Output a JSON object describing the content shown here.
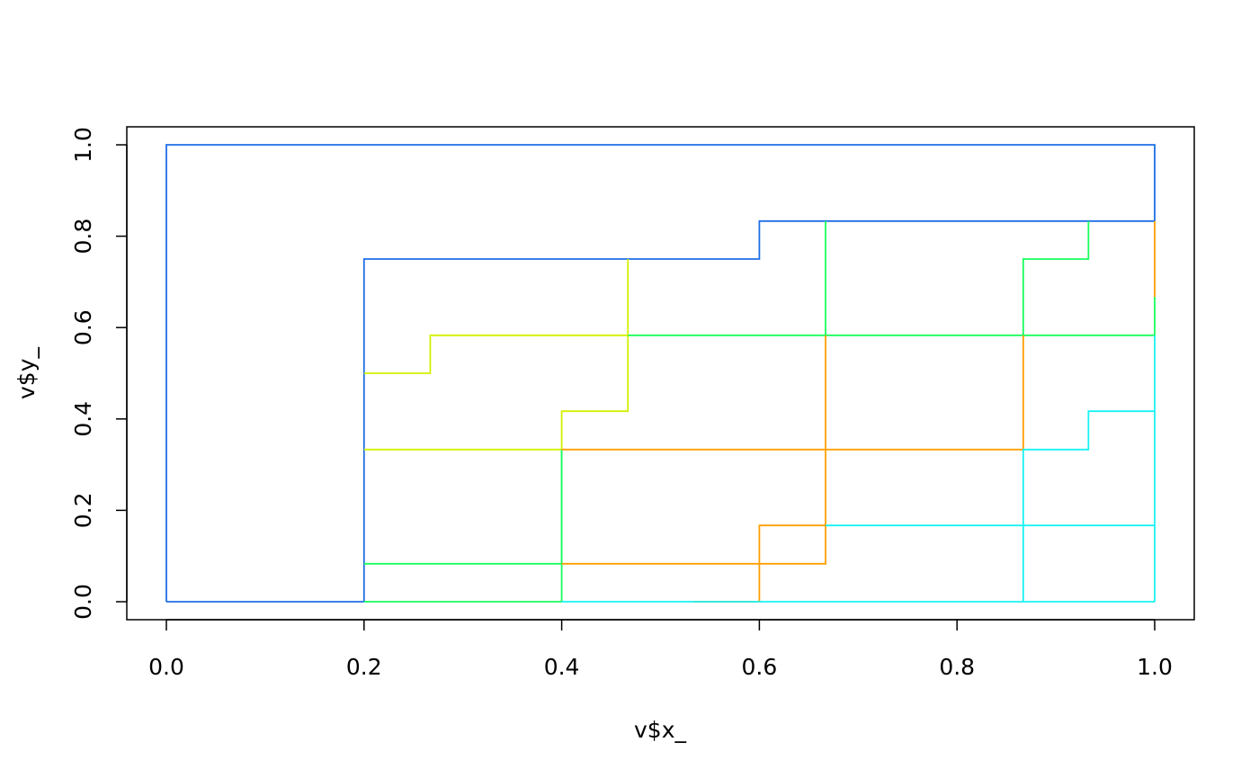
{
  "chart_data": {
    "type": "line",
    "title": "",
    "xlabel": "v$x_",
    "ylabel": "v$y_",
    "xlim": [
      0,
      1
    ],
    "ylim": [
      0,
      1
    ],
    "grid": false,
    "xticks": [
      "0.0",
      "0.2",
      "0.4",
      "0.6",
      "0.8",
      "1.0"
    ],
    "yticks": [
      "0.0",
      "0.2",
      "0.4",
      "0.6",
      "0.8",
      "1.0"
    ],
    "series": [
      {
        "color": "#1f6fe6",
        "points": [
          [
            0.0,
            0.0
          ],
          [
            0.0,
            1.0
          ],
          [
            1.0,
            1.0
          ],
          [
            1.0,
            0.833
          ]
        ]
      },
      {
        "color": "#1f6fe6",
        "points": [
          [
            0.2,
            0.0
          ],
          [
            0.2,
            0.75
          ],
          [
            0.6,
            0.75
          ],
          [
            0.6,
            0.833
          ],
          [
            1.0,
            0.833
          ]
        ]
      },
      {
        "color": "#1f6fe6",
        "points": [
          [
            0.0,
            0.0
          ],
          [
            0.2,
            0.0
          ]
        ]
      },
      {
        "color": "#d4f000",
        "points": [
          [
            0.2,
            0.5
          ],
          [
            0.267,
            0.5
          ],
          [
            0.267,
            0.583
          ],
          [
            0.467,
            0.583
          ],
          [
            0.467,
            0.75
          ]
        ]
      },
      {
        "color": "#d4f000",
        "points": [
          [
            0.2,
            0.333
          ],
          [
            0.4,
            0.333
          ],
          [
            0.4,
            0.417
          ],
          [
            0.467,
            0.417
          ],
          [
            0.467,
            0.583
          ]
        ]
      },
      {
        "color": "#18ff5c",
        "points": [
          [
            0.2,
            0.0
          ],
          [
            0.4,
            0.0
          ]
        ]
      },
      {
        "color": "#18ff5c",
        "points": [
          [
            0.2,
            0.083
          ],
          [
            0.4,
            0.083
          ],
          [
            0.4,
            0.333
          ]
        ]
      },
      {
        "color": "#18ff5c",
        "points": [
          [
            0.4,
            0.0
          ],
          [
            0.4,
            0.333
          ]
        ]
      },
      {
        "color": "#18ff5c",
        "points": [
          [
            0.467,
            0.583
          ],
          [
            1.0,
            0.583
          ],
          [
            1.0,
            0.667
          ]
        ]
      },
      {
        "color": "#18ff5c",
        "points": [
          [
            0.667,
            0.583
          ],
          [
            0.667,
            0.833
          ]
        ]
      },
      {
        "color": "#18ff5c",
        "points": [
          [
            0.867,
            0.583
          ],
          [
            0.867,
            0.75
          ],
          [
            0.933,
            0.75
          ],
          [
            0.933,
            0.833
          ]
        ]
      },
      {
        "color": "#ff9f00",
        "points": [
          [
            0.4,
            0.333
          ],
          [
            0.867,
            0.333
          ],
          [
            0.867,
            0.583
          ]
        ]
      },
      {
        "color": "#ff9f00",
        "points": [
          [
            0.4,
            0.083
          ],
          [
            0.667,
            0.083
          ],
          [
            0.667,
            0.583
          ]
        ]
      },
      {
        "color": "#ff9f00",
        "points": [
          [
            0.533,
            0.0
          ],
          [
            0.6,
            0.0
          ],
          [
            0.6,
            0.167
          ],
          [
            0.667,
            0.167
          ]
        ]
      },
      {
        "color": "#ff9f00",
        "points": [
          [
            1.0,
            0.667
          ],
          [
            1.0,
            0.833
          ]
        ]
      },
      {
        "color": "#18f2f2",
        "points": [
          [
            0.4,
            0.0
          ],
          [
            1.0,
            0.0
          ]
        ]
      },
      {
        "color": "#18f2f2",
        "points": [
          [
            0.667,
            0.167
          ],
          [
            1.0,
            0.167
          ]
        ]
      },
      {
        "color": "#18f2f2",
        "points": [
          [
            0.867,
            0.0
          ],
          [
            0.867,
            0.333
          ],
          [
            0.933,
            0.333
          ],
          [
            0.933,
            0.417
          ],
          [
            1.0,
            0.417
          ]
        ]
      },
      {
        "color": "#18f2f2",
        "points": [
          [
            1.0,
            0.0
          ],
          [
            1.0,
            0.583
          ]
        ]
      }
    ]
  }
}
